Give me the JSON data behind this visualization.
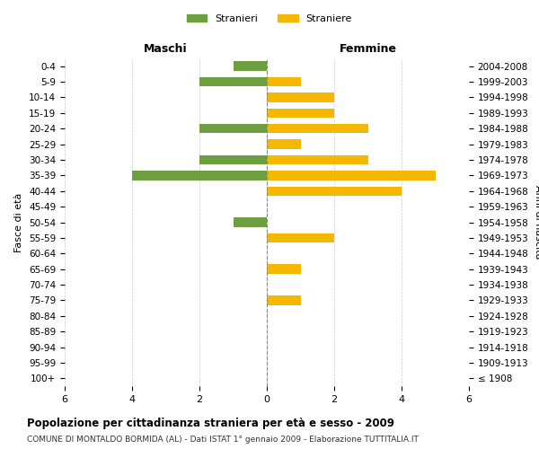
{
  "age_groups": [
    "100+",
    "95-99",
    "90-94",
    "85-89",
    "80-84",
    "75-79",
    "70-74",
    "65-69",
    "60-64",
    "55-59",
    "50-54",
    "45-49",
    "40-44",
    "35-39",
    "30-34",
    "25-29",
    "20-24",
    "15-19",
    "10-14",
    "5-9",
    "0-4"
  ],
  "birth_years": [
    "≤ 1908",
    "1909-1913",
    "1914-1918",
    "1919-1923",
    "1924-1928",
    "1929-1933",
    "1934-1938",
    "1939-1943",
    "1944-1948",
    "1949-1953",
    "1954-1958",
    "1959-1963",
    "1964-1968",
    "1969-1973",
    "1974-1978",
    "1979-1983",
    "1984-1988",
    "1989-1993",
    "1994-1998",
    "1999-2003",
    "2004-2008"
  ],
  "maschi": [
    0,
    0,
    0,
    0,
    0,
    0,
    0,
    0,
    0,
    0,
    1,
    0,
    0,
    4,
    2,
    0,
    2,
    0,
    0,
    2,
    1
  ],
  "femmine": [
    0,
    0,
    0,
    0,
    0,
    1,
    0,
    1,
    0,
    2,
    0,
    0,
    4,
    5,
    3,
    1,
    3,
    2,
    2,
    1,
    0
  ],
  "color_maschi": "#6d9e3f",
  "color_femmine": "#f5b800",
  "xlim": 6,
  "title": "Popolazione per cittadinanza straniera per età e sesso - 2009",
  "subtitle": "COMUNE DI MONTALDO BORMIDA (AL) - Dati ISTAT 1° gennaio 2009 - Elaborazione TUTTITALIA.IT",
  "ylabel_left": "Fasce di età",
  "ylabel_right": "Anni di nascita",
  "legend_stranieri": "Stranieri",
  "legend_straniere": "Straniere",
  "maschi_label": "Maschi",
  "femmine_label": "Femmine",
  "background_color": "#ffffff",
  "grid_color": "#cccccc"
}
